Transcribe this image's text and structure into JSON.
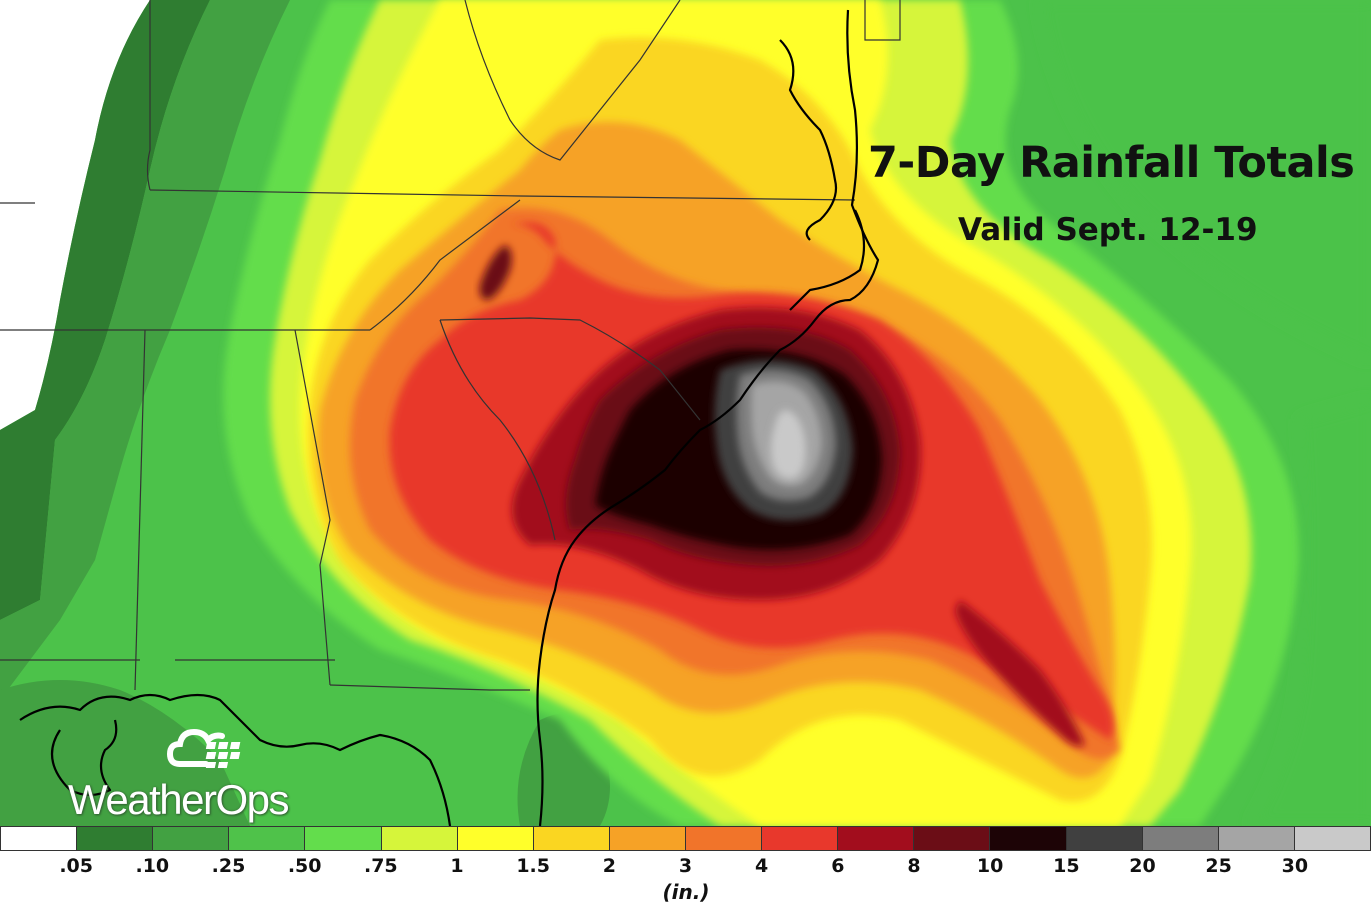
{
  "title": "7-Day Rainfall Totals",
  "subtitle": "Valid Sept. 12-19",
  "logo": {
    "text": "WeatherOps",
    "icon": "cloud-globe-icon"
  },
  "legend": {
    "unit": "(in.)",
    "colors": [
      "#ffffff",
      "#2f7d31",
      "#42a142",
      "#4fc24a",
      "#63dd4c",
      "#d6f53a",
      "#ffff2a",
      "#fad621",
      "#f6a226",
      "#f1742a",
      "#e8382c",
      "#a20d1d",
      "#6b0d16",
      "#1d0406",
      "#404040",
      "#7d7d7d",
      "#a5a5a5",
      "#c9c9c9"
    ],
    "ticks": [
      ".05",
      ".10",
      ".25",
      ".50",
      ".75",
      "1",
      "1.5",
      "2",
      "3",
      "4",
      "6",
      "8",
      "10",
      "15",
      "20",
      "25",
      "30"
    ]
  },
  "map_colors": {
    "background": "#4cc24a",
    "state_lines": "#333333",
    "coastline": "#000000"
  }
}
